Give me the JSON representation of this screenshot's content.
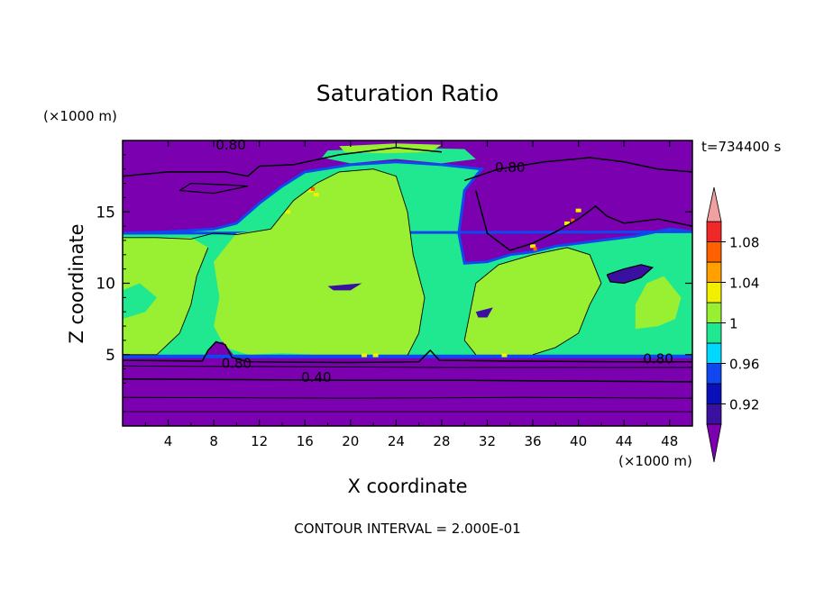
{
  "chart_data": {
    "type": "heatmap",
    "title": "Saturation Ratio",
    "xlabel": "X coordinate",
    "ylabel": "Z coordinate",
    "x_unit": "(×1000 m)",
    "y_unit": "(×1000 m)",
    "xlim": [
      0,
      50
    ],
    "ylim": [
      0,
      20
    ],
    "x_ticks": [
      4,
      8,
      12,
      16,
      20,
      24,
      28,
      32,
      36,
      40,
      44,
      48
    ],
    "y_ticks": [
      5,
      10,
      15
    ],
    "time_label": "t=734400 s",
    "footer": "CONTOUR INTERVAL = 2.000E-01",
    "contour_labels": [
      {
        "text": "0.80",
        "x": 10,
        "z": 4.4
      },
      {
        "text": "0.40",
        "x": 17,
        "z": 3.4
      },
      {
        "text": "0.80",
        "x": 47,
        "z": 4.7
      },
      {
        "text": "0.80",
        "x": 34,
        "z": 18.1
      },
      {
        "text": "0.80",
        "x": 9.5,
        "z": 19.7
      }
    ],
    "colorbar": {
      "levels": [
        0.9,
        0.92,
        0.94,
        0.96,
        0.98,
        1.0,
        1.02,
        1.04,
        1.06,
        1.08,
        1.1
      ],
      "tick_labels": [
        "0.92",
        "0.96",
        "1",
        "1.04",
        "1.08"
      ],
      "tick_values": [
        0.92,
        0.96,
        1.0,
        1.04,
        1.08
      ],
      "colors": [
        "#3a10a0",
        "#0a10b8",
        "#1048f0",
        "#00d8ff",
        "#20e890",
        "#99f033",
        "#f0f000",
        "#ffa000",
        "#ff6000",
        "#f02828"
      ],
      "under_color": "#7a00b0",
      "over_color": "#f0a0a0"
    },
    "colors": {
      "very_dry": "#7a00b0",
      "dry": "#3a10a0",
      "blue": "#1048f0",
      "cyan": "#00d8ff",
      "near_saturated": "#20e890",
      "saturated": "#99f033",
      "supersaturated": "#f0f000"
    }
  }
}
